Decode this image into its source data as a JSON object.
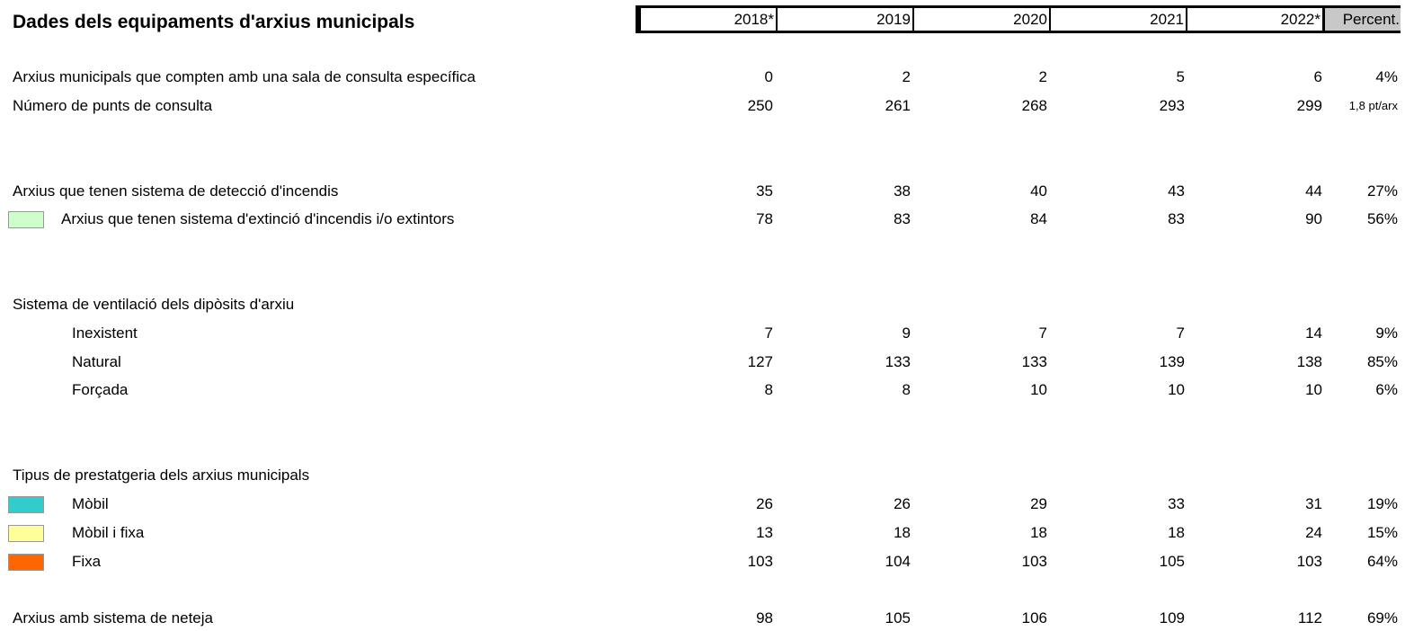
{
  "title": "Dades dels equipaments d'arxius municipals",
  "headers": [
    "2018*",
    "2019",
    "2020",
    "2021",
    "2022*",
    "Percent."
  ],
  "rows": {
    "r1": {
      "label": "Arxius municipals que compten amb una sala de consulta específica",
      "v": [
        "0",
        "2",
        "2",
        "5",
        "6"
      ],
      "pct": "4%"
    },
    "r2": {
      "label": "Número de punts de consulta",
      "v": [
        "250",
        "261",
        "268",
        "293",
        "299"
      ],
      "pct": "1,8 pt/arx"
    },
    "r3": {
      "label": "Arxius que tenen sistema de detecció d'incendis",
      "v": [
        "35",
        "38",
        "40",
        "43",
        "44"
      ],
      "pct": "27%"
    },
    "r4": {
      "label": "Arxius que tenen sistema d'extinció d'incendis i/o extintors",
      "v": [
        "78",
        "83",
        "84",
        "83",
        "90"
      ],
      "pct": "56%",
      "swatch": "#ccffcc"
    },
    "r5": {
      "label": "Sistema de ventilació dels dipòsits d'arxiu"
    },
    "r6": {
      "label": "Inexistent",
      "v": [
        "7",
        "9",
        "7",
        "7",
        "14"
      ],
      "pct": "9%"
    },
    "r7": {
      "label": "Natural",
      "v": [
        "127",
        "133",
        "133",
        "139",
        "138"
      ],
      "pct": "85%"
    },
    "r8": {
      "label": "Forçada",
      "v": [
        "8",
        "8",
        "10",
        "10",
        "10"
      ],
      "pct": "6%"
    },
    "r9": {
      "label": "Tipus de prestatgeria dels arxius municipals"
    },
    "r10": {
      "label": "Mòbil",
      "v": [
        "26",
        "26",
        "29",
        "33",
        "31"
      ],
      "pct": "19%",
      "swatch": "#33cccc"
    },
    "r11": {
      "label": "Mòbil i fixa",
      "v": [
        "13",
        "18",
        "18",
        "18",
        "24"
      ],
      "pct": "15%",
      "swatch": "#ffff99"
    },
    "r12": {
      "label": "Fixa",
      "v": [
        "103",
        "104",
        "103",
        "105",
        "103"
      ],
      "pct": "64%",
      "swatch": "#ff6600"
    },
    "r13": {
      "label": "Arxius amb sistema de neteja",
      "v": [
        "98",
        "105",
        "106",
        "109",
        "112"
      ],
      "pct": "69%"
    }
  }
}
